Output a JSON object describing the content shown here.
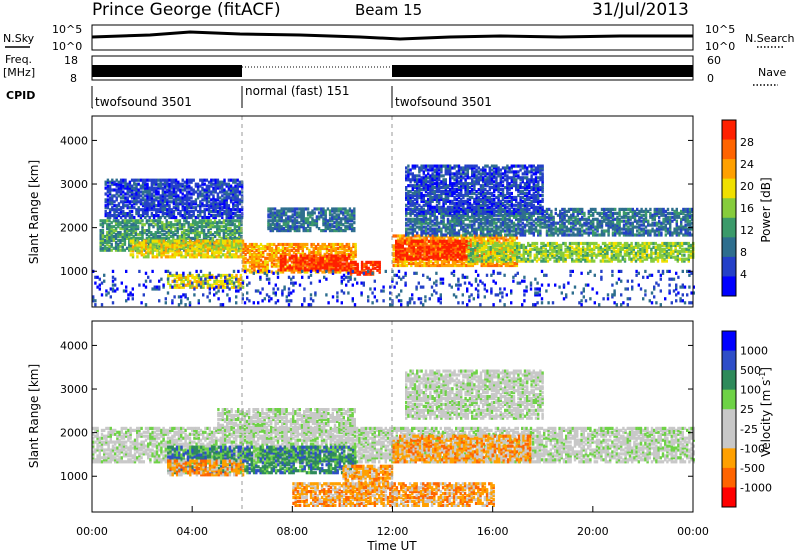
{
  "header": {
    "station": "Prince George (fitACF)",
    "beam": "Beam 15",
    "date": "31/Jul/2013"
  },
  "noise_panel": {
    "left_label": "N.Sky",
    "right_label": "N.Search",
    "left_ticks": [
      "10^5",
      "10^0"
    ],
    "right_ticks": [
      "10^5",
      "10^0"
    ]
  },
  "freq_panel": {
    "left_label": "Freq.",
    "left_unit": "[MHz]",
    "right_label": "Nave",
    "left_ticks": [
      "18",
      "8"
    ],
    "right_ticks": [
      "60",
      "0"
    ]
  },
  "cpid": {
    "label": "CPID",
    "segments": [
      {
        "name": "twofsound 3501",
        "start": 0,
        "end": 6
      },
      {
        "name": "normal (fast) 151",
        "start": 6,
        "end": 12
      },
      {
        "name": "twofsound 3501",
        "start": 12,
        "end": 24
      }
    ]
  },
  "colors": {
    "power_scale": [
      "#0000ff",
      "#2440c8",
      "#2e6e8e",
      "#3b9a6a",
      "#86cc3c",
      "#f0e000",
      "#ffa000",
      "#ff6400",
      "#ff2000"
    ],
    "velocity_scale": [
      "#0000ff",
      "#2e4ec8",
      "#2e8a5a",
      "#6ed246",
      "#c8c8c8",
      "#c8c8c8",
      "#ffa000",
      "#ff6400",
      "#ff0000"
    ]
  },
  "chart_data": [
    {
      "type": "heatmap",
      "title": "Power",
      "xlabel": "",
      "ylabel": "Slant Range [km]",
      "colorbar_label": "Power [dB]",
      "colorbar_ticks": [
        "28",
        "24",
        "20",
        "16",
        "12",
        "8",
        "4"
      ],
      "xlim": [
        0,
        24
      ],
      "ylim": [
        180,
        4560
      ],
      "yticks": [
        "1000",
        "2000",
        "3000",
        "4000"
      ],
      "bands": [
        {
          "t0": 0.3,
          "t1": 6.0,
          "r0": 1450,
          "r1": 2150,
          "level": 3
        },
        {
          "t0": 1.5,
          "t1": 6.0,
          "r0": 1300,
          "r1": 1700,
          "level": 5
        },
        {
          "t0": 6.0,
          "t1": 10.5,
          "r0": 950,
          "r1": 1600,
          "level": 6
        },
        {
          "t0": 7.5,
          "t1": 10.3,
          "r0": 1000,
          "r1": 1350,
          "level": 8
        },
        {
          "t0": 10.3,
          "t1": 11.5,
          "r0": 900,
          "r1": 1200,
          "level": 8
        },
        {
          "t0": 12.0,
          "t1": 17.0,
          "r0": 1100,
          "r1": 1800,
          "level": 6
        },
        {
          "t0": 12.1,
          "t1": 15.0,
          "r0": 1250,
          "r1": 1700,
          "level": 8
        },
        {
          "t0": 15.0,
          "t1": 24.0,
          "r0": 1200,
          "r1": 1650,
          "level": 4
        },
        {
          "t0": 12.5,
          "t1": 24.0,
          "r0": 1800,
          "r1": 2400,
          "level": 2
        },
        {
          "t0": 0.5,
          "t1": 6.0,
          "r0": 2200,
          "r1": 3100,
          "level": 1
        },
        {
          "t0": 12.5,
          "t1": 18.0,
          "r0": 2300,
          "r1": 3400,
          "level": 1
        },
        {
          "t0": 7.0,
          "t1": 10.5,
          "r0": 1900,
          "r1": 2400,
          "level": 2
        },
        {
          "t0": 3.0,
          "t1": 6.0,
          "r0": 600,
          "r1": 900,
          "level": 5
        },
        {
          "t0": 0.0,
          "t1": 24.0,
          "r0": 200,
          "r1": 1000,
          "level": 0
        }
      ]
    },
    {
      "type": "heatmap",
      "title": "Velocity",
      "xlabel": "Time UT",
      "ylabel": "Slant Range [km]",
      "colorbar_label": "Velocity [m s^-1]",
      "colorbar_ticks": [
        "1000",
        "500",
        "100",
        "25",
        "-25",
        "-100",
        "-500",
        "-1000"
      ],
      "xlim": [
        0,
        24
      ],
      "ylim": [
        180,
        4560
      ],
      "xticks": [
        "00:00",
        "04:00",
        "08:00",
        "12:00",
        "16:00",
        "20:00",
        "00:00"
      ],
      "yticks": [
        "1000",
        "2000",
        "3000",
        "4000"
      ],
      "bands": [
        {
          "t0": 0.0,
          "t1": 24.0,
          "r0": 1300,
          "r1": 2100,
          "level": 4
        },
        {
          "t0": 3.0,
          "t1": 10.5,
          "r0": 1050,
          "r1": 1650,
          "level": 2
        },
        {
          "t0": 3.0,
          "t1": 6.0,
          "r0": 1000,
          "r1": 1350,
          "level": 6
        },
        {
          "t0": 12.0,
          "t1": 17.5,
          "r0": 1300,
          "r1": 1900,
          "level": 6
        },
        {
          "t0": 10.0,
          "t1": 12.0,
          "r0": 700,
          "r1": 1200,
          "level": 6
        },
        {
          "t0": 8.0,
          "t1": 16.0,
          "r0": 300,
          "r1": 800,
          "level": 6
        },
        {
          "t0": 12.5,
          "t1": 18.0,
          "r0": 2300,
          "r1": 3400,
          "level": 4
        },
        {
          "t0": 5.0,
          "t1": 10.5,
          "r0": 2000,
          "r1": 2500,
          "level": 4
        }
      ]
    }
  ]
}
